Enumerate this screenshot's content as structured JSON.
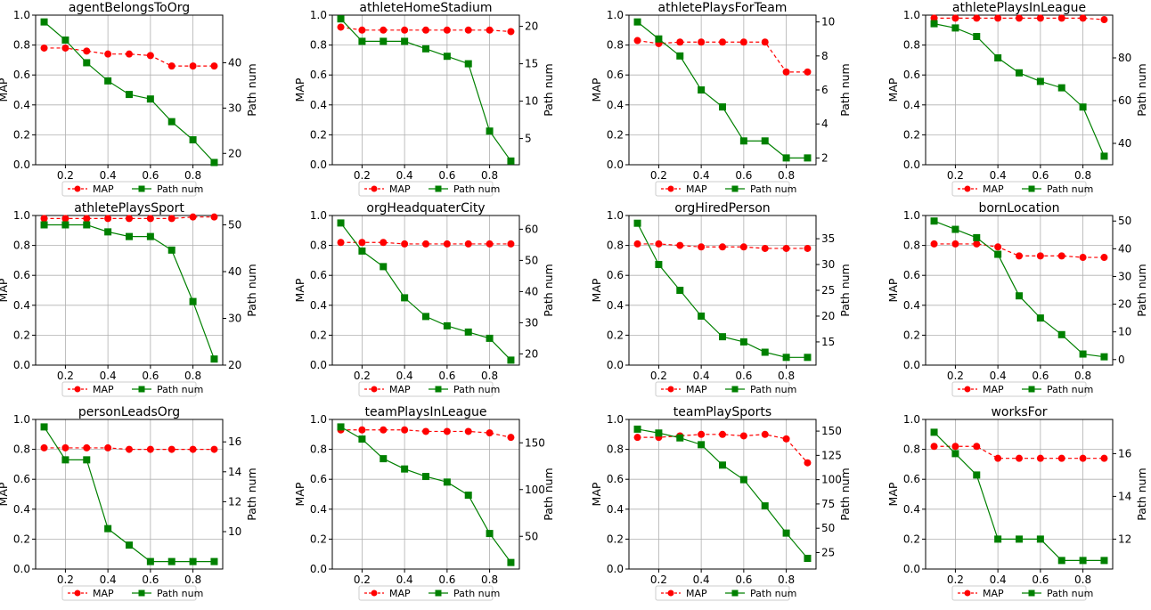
{
  "chart_data": [
    {
      "type": "line",
      "title": "agentBelongsToOrg",
      "ylabel": "MAP",
      "y2label": "Path num",
      "x": [
        0.1,
        0.2,
        0.3,
        0.4,
        0.5,
        0.6,
        0.7,
        0.8,
        0.9
      ],
      "ylim": [
        0,
        1
      ],
      "y2lim": [
        17.5,
        50.5
      ],
      "xticks": [
        0.2,
        0.4,
        0.6,
        0.8
      ],
      "yticks": [
        0.0,
        0.2,
        0.4,
        0.6,
        0.8,
        1.0
      ],
      "y2ticks": [
        20,
        30,
        40
      ],
      "y2tick_labels": [
        "20",
        "30",
        "40"
      ],
      "series": [
        {
          "name": "MAP",
          "axis": "left",
          "color": "#ff0000",
          "marker": "circle",
          "linestyle": "dashed",
          "values": [
            0.78,
            0.78,
            0.76,
            0.74,
            0.74,
            0.73,
            0.66,
            0.66,
            0.66
          ]
        },
        {
          "name": "Path num",
          "axis": "right",
          "color": "#008000",
          "marker": "square",
          "linestyle": "solid",
          "values": [
            49,
            45,
            40,
            36,
            33,
            32,
            27,
            23,
            18
          ]
        }
      ],
      "legend": "bottom",
      "grid": true
    },
    {
      "type": "line",
      "title": "athleteHomeStadium",
      "ylabel": "MAP",
      "y2label": "Path num",
      "x": [
        0.1,
        0.2,
        0.3,
        0.4,
        0.5,
        0.6,
        0.7,
        0.8,
        0.9
      ],
      "ylim": [
        0,
        1
      ],
      "y2lim": [
        1.5,
        21.5
      ],
      "xticks": [
        0.2,
        0.4,
        0.6,
        0.8
      ],
      "yticks": [
        0.0,
        0.2,
        0.4,
        0.6,
        0.8,
        1.0
      ],
      "y2ticks": [
        5,
        10,
        15,
        20
      ],
      "y2tick_labels": [
        "5",
        "10",
        "15",
        "20"
      ],
      "series": [
        {
          "name": "MAP",
          "axis": "left",
          "color": "#ff0000",
          "marker": "circle",
          "linestyle": "dashed",
          "values": [
            0.92,
            0.9,
            0.9,
            0.9,
            0.9,
            0.9,
            0.9,
            0.9,
            0.89
          ]
        },
        {
          "name": "Path num",
          "axis": "right",
          "color": "#008000",
          "marker": "square",
          "linestyle": "solid",
          "values": [
            21,
            18,
            18,
            18,
            17,
            16,
            15,
            6,
            2
          ]
        }
      ],
      "legend": "bottom",
      "grid": true
    },
    {
      "type": "line",
      "title": "athletePlaysForTeam",
      "ylabel": "MAP",
      "y2label": "Path num",
      "x": [
        0.1,
        0.2,
        0.3,
        0.4,
        0.5,
        0.6,
        0.7,
        0.8,
        0.9
      ],
      "ylim": [
        0,
        1
      ],
      "y2lim": [
        1.6,
        10.4
      ],
      "xticks": [
        0.2,
        0.4,
        0.6,
        0.8
      ],
      "yticks": [
        0.0,
        0.2,
        0.4,
        0.6,
        0.8,
        1.0
      ],
      "y2ticks": [
        2,
        4,
        6,
        8,
        10
      ],
      "y2tick_labels": [
        "2",
        "4",
        "6",
        "8",
        "10"
      ],
      "series": [
        {
          "name": "MAP",
          "axis": "left",
          "color": "#ff0000",
          "marker": "circle",
          "linestyle": "dashed",
          "values": [
            0.83,
            0.81,
            0.82,
            0.82,
            0.82,
            0.82,
            0.82,
            0.62,
            0.62
          ]
        },
        {
          "name": "Path num",
          "axis": "right",
          "color": "#008000",
          "marker": "square",
          "linestyle": "solid",
          "values": [
            10,
            9,
            8,
            6,
            5,
            3,
            3,
            2,
            2
          ]
        }
      ],
      "legend": "bottom",
      "grid": true
    },
    {
      "type": "line",
      "title": "athletePlaysInLeague",
      "ylabel": "MAP",
      "y2label": "Path num",
      "x": [
        0.1,
        0.2,
        0.3,
        0.4,
        0.5,
        0.6,
        0.7,
        0.8,
        0.9
      ],
      "ylim": [
        0,
        1
      ],
      "y2lim": [
        30,
        100
      ],
      "xticks": [
        0.2,
        0.4,
        0.6,
        0.8
      ],
      "yticks": [
        0.0,
        0.2,
        0.4,
        0.6,
        0.8,
        1.0
      ],
      "y2ticks": [
        40,
        60,
        80
      ],
      "y2tick_labels": [
        "40",
        "60",
        "80"
      ],
      "series": [
        {
          "name": "MAP",
          "axis": "left",
          "color": "#ff0000",
          "marker": "circle",
          "linestyle": "dashed",
          "values": [
            0.98,
            0.98,
            0.98,
            0.98,
            0.98,
            0.98,
            0.98,
            0.98,
            0.97
          ]
        },
        {
          "name": "Path num",
          "axis": "right",
          "color": "#008000",
          "marker": "square",
          "linestyle": "solid",
          "values": [
            96,
            94,
            90,
            80,
            73,
            69,
            66,
            57,
            34
          ]
        }
      ],
      "legend": "bottom",
      "grid": true
    },
    {
      "type": "line",
      "title": "athletePlaysSport",
      "ylabel": "MAP",
      "y2label": "Path num",
      "x": [
        0.1,
        0.2,
        0.3,
        0.4,
        0.5,
        0.6,
        0.7,
        0.8,
        0.9
      ],
      "ylim": [
        0,
        1
      ],
      "y2lim": [
        20,
        52
      ],
      "xticks": [
        0.2,
        0.4,
        0.6,
        0.8
      ],
      "yticks": [
        0.0,
        0.2,
        0.4,
        0.6,
        0.8,
        1.0
      ],
      "y2ticks": [
        20,
        30,
        40,
        50
      ],
      "y2tick_labels": [
        "20",
        "30",
        "40",
        "50"
      ],
      "series": [
        {
          "name": "MAP",
          "axis": "left",
          "color": "#ff0000",
          "marker": "circle",
          "linestyle": "dashed",
          "values": [
            0.98,
            0.98,
            0.98,
            0.98,
            0.98,
            0.98,
            0.98,
            0.99,
            0.99
          ]
        },
        {
          "name": "Path num",
          "axis": "right",
          "color": "#008000",
          "marker": "square",
          "linestyle": "solid",
          "values": [
            50,
            50,
            50,
            48.5,
            47.5,
            47.5,
            44.6,
            33.6,
            21.3
          ]
        }
      ],
      "legend": "bottom",
      "grid": true
    },
    {
      "type": "line",
      "title": "orgHeadquaterCity",
      "ylabel": "MAP",
      "y2label": "Path num",
      "x": [
        0.1,
        0.2,
        0.3,
        0.4,
        0.5,
        0.6,
        0.7,
        0.8,
        0.9
      ],
      "ylim": [
        0,
        1
      ],
      "y2lim": [
        16.4,
        64.4
      ],
      "xticks": [
        0.2,
        0.4,
        0.6,
        0.8
      ],
      "yticks": [
        0.0,
        0.2,
        0.4,
        0.6,
        0.8,
        1.0
      ],
      "y2ticks": [
        20,
        30,
        40,
        50,
        60
      ],
      "y2tick_labels": [
        "20",
        "30",
        "40",
        "50",
        "60"
      ],
      "series": [
        {
          "name": "MAP",
          "axis": "left",
          "color": "#ff0000",
          "marker": "circle",
          "linestyle": "dashed",
          "values": [
            0.82,
            0.82,
            0.82,
            0.81,
            0.81,
            0.81,
            0.81,
            0.81,
            0.81
          ]
        },
        {
          "name": "Path num",
          "axis": "right",
          "color": "#008000",
          "marker": "square",
          "linestyle": "solid",
          "values": [
            62,
            53,
            48,
            38,
            32,
            29,
            27,
            25,
            18
          ]
        }
      ],
      "legend": "bottom",
      "grid": true
    },
    {
      "type": "line",
      "title": "orgHiredPerson",
      "ylabel": "MAP",
      "y2label": "Path num",
      "x": [
        0.1,
        0.2,
        0.3,
        0.4,
        0.5,
        0.6,
        0.7,
        0.8,
        0.9
      ],
      "ylim": [
        0,
        1
      ],
      "y2lim": [
        10.5,
        39.5
      ],
      "xticks": [
        0.2,
        0.4,
        0.6,
        0.8
      ],
      "yticks": [
        0.0,
        0.2,
        0.4,
        0.6,
        0.8,
        1.0
      ],
      "y2ticks": [
        15,
        20,
        25,
        30,
        35
      ],
      "y2tick_labels": [
        "15",
        "20",
        "25",
        "30",
        "35"
      ],
      "series": [
        {
          "name": "MAP",
          "axis": "left",
          "color": "#ff0000",
          "marker": "circle",
          "linestyle": "dashed",
          "values": [
            0.81,
            0.81,
            0.8,
            0.79,
            0.79,
            0.79,
            0.78,
            0.78,
            0.78
          ]
        },
        {
          "name": "Path num",
          "axis": "right",
          "color": "#008000",
          "marker": "square",
          "linestyle": "solid",
          "values": [
            38,
            30,
            25,
            20,
            16,
            15,
            13,
            12,
            12
          ]
        }
      ],
      "legend": "bottom",
      "grid": true
    },
    {
      "type": "line",
      "title": "bornLocation",
      "ylabel": "MAP",
      "y2label": "Path num",
      "x": [
        0.1,
        0.2,
        0.3,
        0.4,
        0.5,
        0.6,
        0.7,
        0.8,
        0.9
      ],
      "ylim": [
        0,
        1
      ],
      "y2lim": [
        -2,
        52
      ],
      "xticks": [
        0.2,
        0.4,
        0.6,
        0.8
      ],
      "yticks": [
        0.0,
        0.2,
        0.4,
        0.6,
        0.8,
        1.0
      ],
      "y2ticks": [
        0,
        10,
        20,
        30,
        40,
        50
      ],
      "y2tick_labels": [
        "0",
        "10",
        "20",
        "30",
        "40",
        "50"
      ],
      "series": [
        {
          "name": "MAP",
          "axis": "left",
          "color": "#ff0000",
          "marker": "circle",
          "linestyle": "dashed",
          "values": [
            0.81,
            0.81,
            0.81,
            0.79,
            0.73,
            0.73,
            0.73,
            0.72,
            0.72
          ]
        },
        {
          "name": "Path num",
          "axis": "right",
          "color": "#008000",
          "marker": "square",
          "linestyle": "solid",
          "values": [
            50,
            47,
            44,
            38,
            23,
            15,
            9,
            2,
            1
          ]
        }
      ],
      "legend": "bottom",
      "grid": true
    },
    {
      "type": "line",
      "title": "personLeadsOrg",
      "ylabel": "MAP",
      "y2label": "Path num",
      "x": [
        0.1,
        0.2,
        0.3,
        0.4,
        0.5,
        0.6,
        0.7,
        0.8,
        0.9
      ],
      "ylim": [
        0,
        1
      ],
      "y2lim": [
        7.5,
        17.5
      ],
      "xticks": [
        0.2,
        0.4,
        0.6,
        0.8
      ],
      "yticks": [
        0.0,
        0.2,
        0.4,
        0.6,
        0.8,
        1.0
      ],
      "y2ticks": [
        10,
        12,
        14,
        16
      ],
      "y2tick_labels": [
        "10",
        "12",
        "14",
        "16"
      ],
      "series": [
        {
          "name": "MAP",
          "axis": "left",
          "color": "#ff0000",
          "marker": "circle",
          "linestyle": "dashed",
          "values": [
            0.81,
            0.81,
            0.81,
            0.81,
            0.8,
            0.8,
            0.8,
            0.8,
            0.8
          ]
        },
        {
          "name": "Path num",
          "axis": "right",
          "color": "#008000",
          "marker": "square",
          "linestyle": "solid",
          "values": [
            17,
            14.8,
            14.8,
            10.2,
            9.1,
            8,
            8,
            8,
            8
          ]
        }
      ],
      "legend": "bottom",
      "grid": true
    },
    {
      "type": "line",
      "title": "teamPlaysInLeague",
      "ylabel": "MAP",
      "y2label": "Path num",
      "x": [
        0.1,
        0.2,
        0.3,
        0.4,
        0.5,
        0.6,
        0.7,
        0.8,
        0.9
      ],
      "ylim": [
        0,
        1
      ],
      "y2lim": [
        15,
        175
      ],
      "xticks": [
        0.2,
        0.4,
        0.6,
        0.8
      ],
      "yticks": [
        0.0,
        0.2,
        0.4,
        0.6,
        0.8,
        1.0
      ],
      "y2ticks": [
        50,
        100,
        150
      ],
      "y2tick_labels": [
        "50",
        "100",
        "150"
      ],
      "series": [
        {
          "name": "MAP",
          "axis": "left",
          "color": "#ff0000",
          "marker": "circle",
          "linestyle": "dashed",
          "values": [
            0.93,
            0.93,
            0.93,
            0.93,
            0.92,
            0.92,
            0.92,
            0.91,
            0.88
          ]
        },
        {
          "name": "Path num",
          "axis": "right",
          "color": "#008000",
          "marker": "square",
          "linestyle": "solid",
          "values": [
            167,
            154,
            133,
            122,
            114,
            108,
            94,
            53,
            22
          ]
        }
      ],
      "legend": "bottom",
      "grid": true
    },
    {
      "type": "line",
      "title": "teamPlaySports",
      "ylabel": "MAP",
      "y2label": "Path num",
      "x": [
        0.1,
        0.2,
        0.3,
        0.4,
        0.5,
        0.6,
        0.7,
        0.8,
        0.9
      ],
      "ylim": [
        0,
        1
      ],
      "y2lim": [
        8,
        162
      ],
      "xticks": [
        0.2,
        0.4,
        0.6,
        0.8
      ],
      "yticks": [
        0.0,
        0.2,
        0.4,
        0.6,
        0.8,
        1.0
      ],
      "y2ticks": [
        25,
        50,
        75,
        100,
        125,
        150
      ],
      "y2tick_labels": [
        "25",
        "50",
        "75",
        "100",
        "125",
        "150"
      ],
      "series": [
        {
          "name": "MAP",
          "axis": "left",
          "color": "#ff0000",
          "marker": "circle",
          "linestyle": "dashed",
          "values": [
            0.88,
            0.88,
            0.89,
            0.9,
            0.9,
            0.89,
            0.9,
            0.87,
            0.71
          ]
        },
        {
          "name": "Path num",
          "axis": "right",
          "color": "#008000",
          "marker": "square",
          "linestyle": "solid",
          "values": [
            152,
            148,
            143,
            136,
            115,
            100,
            73,
            45,
            19
          ]
        }
      ],
      "legend": "bottom",
      "grid": true
    },
    {
      "type": "line",
      "title": "worksFor",
      "ylabel": "MAP",
      "y2label": "Path num",
      "x": [
        0.1,
        0.2,
        0.3,
        0.4,
        0.5,
        0.6,
        0.7,
        0.8,
        0.9
      ],
      "ylim": [
        0,
        1
      ],
      "y2lim": [
        10.6,
        17.6
      ],
      "xticks": [
        0.2,
        0.4,
        0.6,
        0.8
      ],
      "yticks": [
        0.0,
        0.2,
        0.4,
        0.6,
        0.8,
        1.0
      ],
      "y2ticks": [
        12,
        14,
        16
      ],
      "y2tick_labels": [
        "12",
        "14",
        "16"
      ],
      "series": [
        {
          "name": "MAP",
          "axis": "left",
          "color": "#ff0000",
          "marker": "circle",
          "linestyle": "dashed",
          "values": [
            0.82,
            0.82,
            0.82,
            0.74,
            0.74,
            0.74,
            0.74,
            0.74,
            0.74
          ]
        },
        {
          "name": "Path num",
          "axis": "right",
          "color": "#008000",
          "marker": "square",
          "linestyle": "solid",
          "values": [
            17,
            16,
            15,
            12,
            12,
            12,
            11,
            11,
            11
          ]
        }
      ],
      "legend": "bottom",
      "grid": true
    }
  ]
}
